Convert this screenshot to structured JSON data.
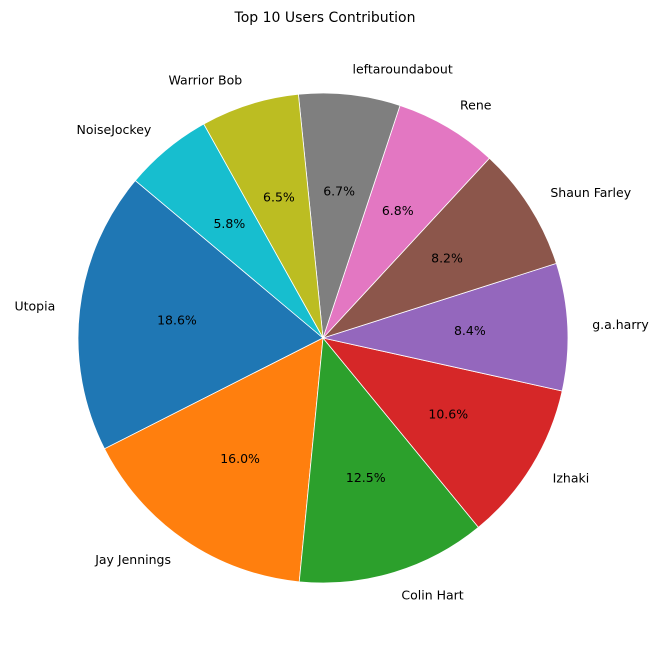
{
  "chart_data": {
    "type": "pie",
    "title": "Top 10 Users Contribution",
    "start_angle_deg": 140,
    "direction": "counterclockwise",
    "slices": [
      {
        "label": "Utopia",
        "value": 18.6,
        "pct_label": "18.6%",
        "color": "#1f77b4"
      },
      {
        "label": "Jay Jennings",
        "value": 16.0,
        "pct_label": "16.0%",
        "color": "#ff7f0e"
      },
      {
        "label": "Colin Hart",
        "value": 12.5,
        "pct_label": "12.5%",
        "color": "#2ca02c"
      },
      {
        "label": "Izhaki",
        "value": 10.6,
        "pct_label": "10.6%",
        "color": "#d62728"
      },
      {
        "label": "g.a.harry",
        "value": 8.4,
        "pct_label": "8.4%",
        "color": "#9467bd"
      },
      {
        "label": "Shaun Farley",
        "value": 8.2,
        "pct_label": "8.2%",
        "color": "#8c564b"
      },
      {
        "label": "Rene",
        "value": 6.8,
        "pct_label": "6.8%",
        "color": "#e377c2"
      },
      {
        "label": "leftaroundabout",
        "value": 6.7,
        "pct_label": "6.7%",
        "color": "#7f7f7f"
      },
      {
        "label": "Warrior Bob",
        "value": 6.5,
        "pct_label": "6.5%",
        "color": "#bcbd22"
      },
      {
        "label": "NoiseJockey",
        "value": 5.8,
        "pct_label": "5.8%",
        "color": "#17becf"
      }
    ]
  }
}
